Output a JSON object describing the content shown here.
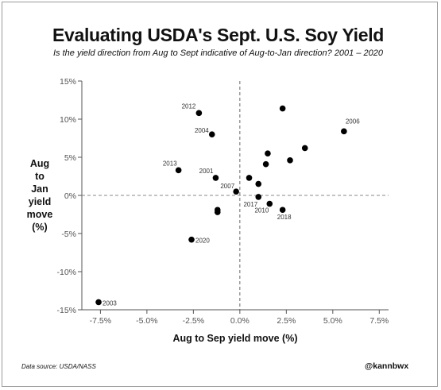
{
  "title": "Evaluating USDA's Sept. U.S. Soy Yield",
  "subtitle": "Is the yield direction from Aug to Sept indicative of Aug-to-Jan direction? 2001 – 2020",
  "ylabel_lines": [
    "Aug",
    "to",
    "Jan",
    "yield",
    "move",
    "(%)"
  ],
  "xlabel": "Aug to Sep yield move (%)",
  "source": "Data source: USDA/NASS",
  "handle": "@kannbwx",
  "chart_data": {
    "type": "scatter",
    "title": "Evaluating USDA's Sept. U.S. Soy Yield",
    "subtitle": "Is the yield direction from Aug to Sept indicative of Aug-to-Jan direction? 2001 – 2020",
    "xlabel": "Aug to Sep yield move (%)",
    "ylabel": "Aug to Jan yield move (%)",
    "xlim": [
      -8.5,
      8
    ],
    "ylim": [
      -15,
      15
    ],
    "xticks": [
      -7.5,
      -5,
      -2.5,
      0,
      2.5,
      5,
      7.5
    ],
    "xtick_labels": [
      "-7.5%",
      "-5.0%",
      "-2.5%",
      "0.0%",
      "2.5%",
      "5.0%",
      "7.5%"
    ],
    "yticks": [
      -15,
      -10,
      -5,
      0,
      5,
      10,
      15
    ],
    "ytick_labels": [
      "-15%",
      "-10%",
      "-5%",
      "0%",
      "5%",
      "10%",
      "15%"
    ],
    "grid": false,
    "reference_lines": "dashed at x=0 and y=0",
    "marker_color": "#000000",
    "points": [
      {
        "x": -7.6,
        "y": -14.0,
        "label": "2003"
      },
      {
        "x": -2.2,
        "y": 10.8,
        "label": "2012"
      },
      {
        "x": -1.5,
        "y": 8.0,
        "label": "2004"
      },
      {
        "x": 5.6,
        "y": 8.4,
        "label": "2006"
      },
      {
        "x": -3.3,
        "y": 3.3,
        "label": "2013"
      },
      {
        "x": -1.3,
        "y": 2.3,
        "label": "2001"
      },
      {
        "x": -0.2,
        "y": 0.5,
        "label": "2007"
      },
      {
        "x": 1.0,
        "y": -0.2,
        "label": "2017"
      },
      {
        "x": 1.6,
        "y": -1.1,
        "label": "2010"
      },
      {
        "x": 2.3,
        "y": -1.9,
        "label": "2018"
      },
      {
        "x": -2.6,
        "y": -5.8,
        "label": "2020"
      },
      {
        "x": 2.3,
        "y": 11.4,
        "label": ""
      },
      {
        "x": 3.5,
        "y": 6.2,
        "label": ""
      },
      {
        "x": 1.5,
        "y": 5.5,
        "label": ""
      },
      {
        "x": 2.7,
        "y": 4.6,
        "label": ""
      },
      {
        "x": 1.4,
        "y": 4.1,
        "label": ""
      },
      {
        "x": 0.5,
        "y": 2.3,
        "label": ""
      },
      {
        "x": 1.0,
        "y": 1.5,
        "label": ""
      },
      {
        "x": -1.2,
        "y": -1.9,
        "label": ""
      },
      {
        "x": -1.2,
        "y": -2.2,
        "label": ""
      }
    ]
  }
}
